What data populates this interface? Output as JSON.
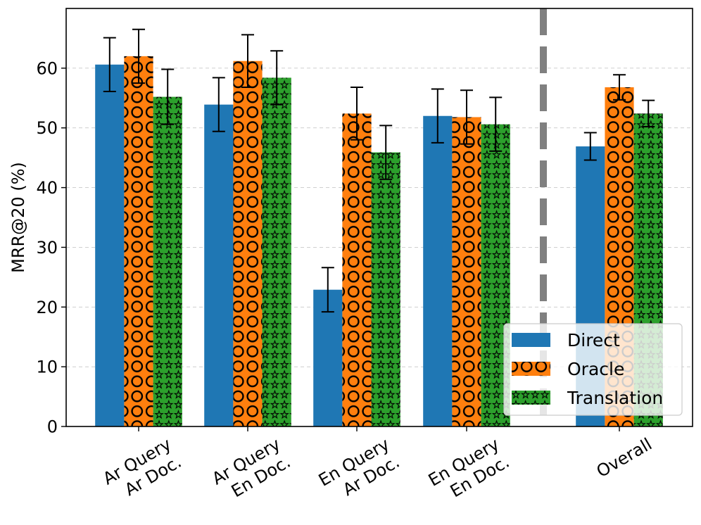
{
  "chart_data": {
    "type": "bar",
    "title": "",
    "xlabel": "",
    "ylabel": "MRR@20 (%)",
    "ylim": [
      0,
      70
    ],
    "yticks": [
      0,
      10,
      20,
      30,
      40,
      50,
      60
    ],
    "grid": "y-dashed",
    "categories": [
      [
        "Ar Query",
        "Ar Doc."
      ],
      [
        "Ar Query",
        "En Doc."
      ],
      [
        "En Query",
        "Ar Doc."
      ],
      [
        "En Query",
        "En Doc."
      ],
      [
        "Overall"
      ]
    ],
    "series": [
      {
        "name": "Direct",
        "color": "#1f77b4",
        "hatch": "none",
        "values": [
          60.6,
          53.9,
          22.9,
          52.0,
          46.9
        ],
        "errors": [
          4.5,
          4.5,
          3.7,
          4.5,
          2.3
        ]
      },
      {
        "name": "Oracle",
        "color": "#ff7f0e",
        "hatch": "circles",
        "values": [
          62.0,
          61.2,
          52.4,
          51.8,
          56.8
        ],
        "errors": [
          4.5,
          4.4,
          4.4,
          4.5,
          2.1
        ]
      },
      {
        "name": "Translation",
        "color": "#2ca02c",
        "hatch": "stars",
        "values": [
          55.2,
          58.4,
          45.9,
          50.6,
          52.4
        ],
        "errors": [
          4.6,
          4.5,
          4.5,
          4.5,
          2.2
        ]
      }
    ],
    "separator": "dashed vertical line between 'En Query En Doc.' and 'Overall'",
    "legend_position": "bottom-right"
  }
}
